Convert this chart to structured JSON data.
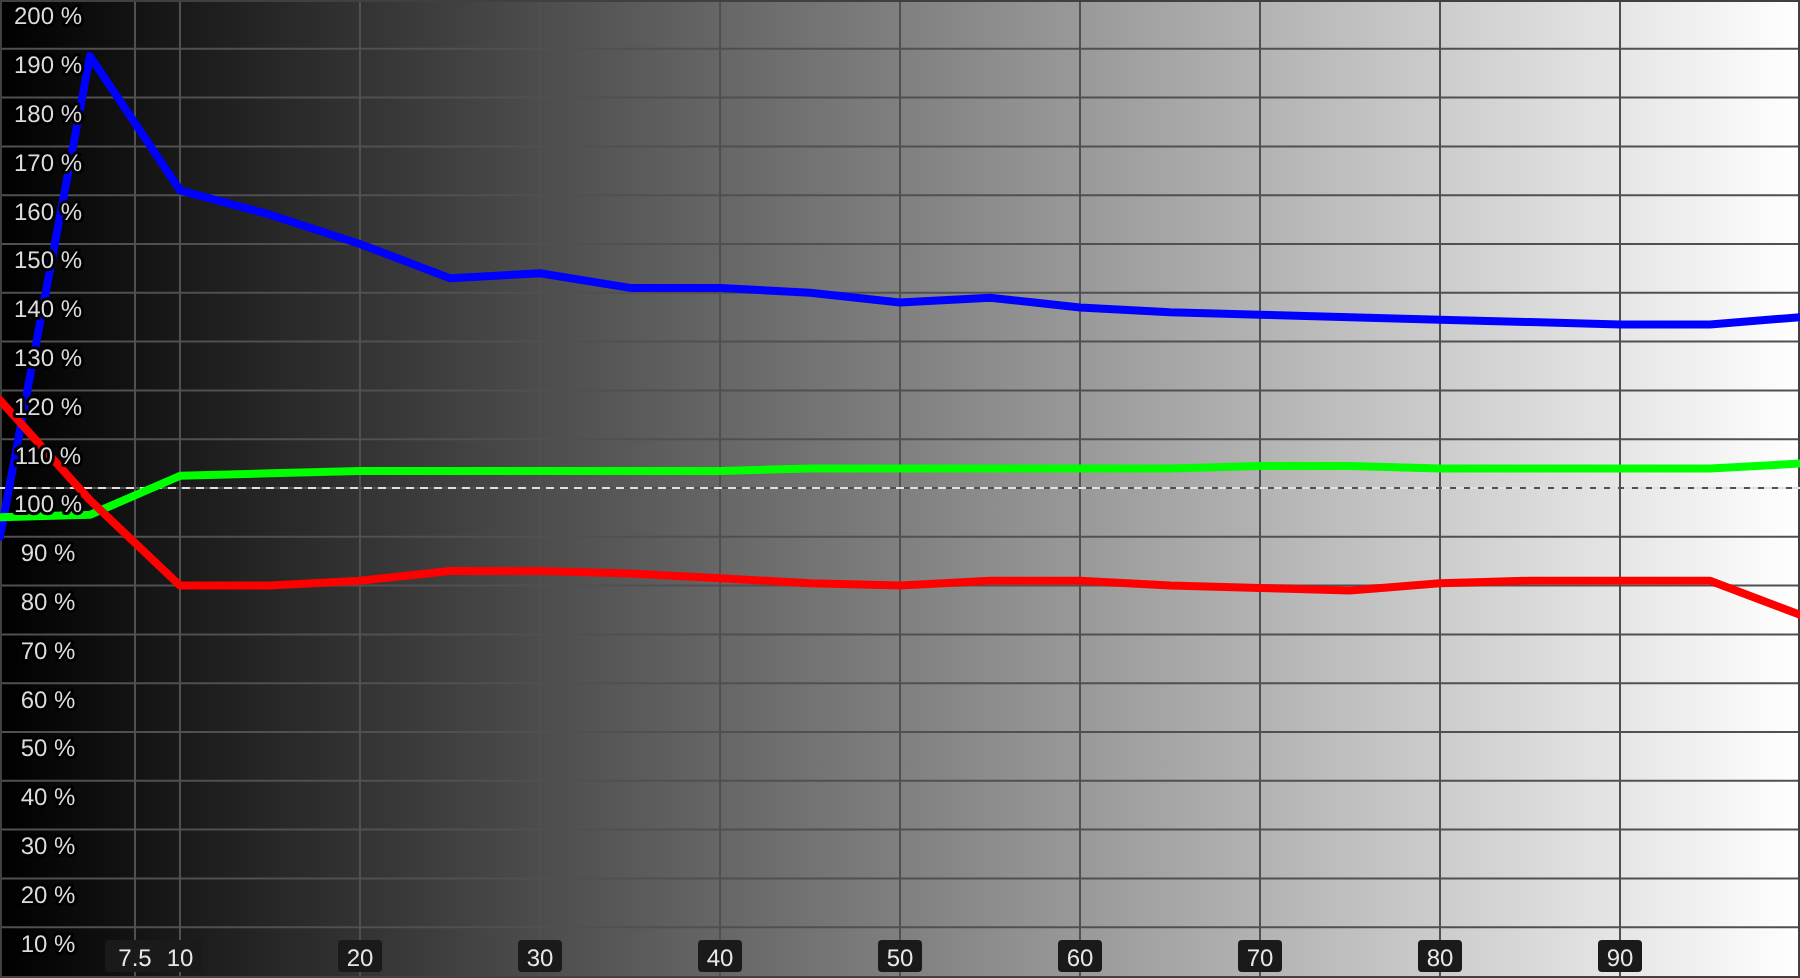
{
  "chart_data": {
    "type": "line",
    "x": [
      0,
      5,
      10,
      15,
      20,
      25,
      30,
      35,
      40,
      45,
      50,
      55,
      60,
      65,
      70,
      75,
      80,
      85,
      90,
      95,
      100
    ],
    "series": [
      {
        "color": "#0000ff",
        "values": [
          90,
          188.5,
          161,
          156,
          150,
          143,
          144,
          141,
          141,
          140,
          138,
          139,
          137,
          136,
          135.5,
          135,
          134.5,
          134,
          133.5,
          133.5,
          135
        ]
      },
      {
        "color": "#00ff00",
        "values": [
          94,
          94.5,
          102.5,
          103,
          103.5,
          103.5,
          103.5,
          103.5,
          103.5,
          104,
          104,
          104,
          104,
          104,
          104.5,
          104.5,
          104,
          104,
          104,
          104,
          105
        ]
      },
      {
        "color": "#ff0000",
        "values": [
          118,
          97.5,
          80,
          80,
          81,
          83,
          83,
          82.5,
          81.5,
          80.5,
          80,
          81,
          81,
          80,
          79.5,
          79,
          80.5,
          81,
          81,
          81,
          74
        ]
      }
    ],
    "xlim": [
      0,
      100
    ],
    "xticks": [
      7.5,
      10,
      20,
      30,
      40,
      50,
      60,
      70,
      80,
      90
    ],
    "ylim": [
      0,
      200
    ],
    "yticks": [
      {
        "value": 10,
        "label": "10 %"
      },
      {
        "value": 20,
        "label": "20 %"
      },
      {
        "value": 30,
        "label": "30 %"
      },
      {
        "value": 40,
        "label": "40 %"
      },
      {
        "value": 50,
        "label": "50 %"
      },
      {
        "value": 60,
        "label": "60 %"
      },
      {
        "value": 70,
        "label": "70 %"
      },
      {
        "value": 80,
        "label": "80 %"
      },
      {
        "value": 90,
        "label": "90 %"
      },
      {
        "value": 100,
        "label": "100 %"
      },
      {
        "value": 110,
        "label": "110 %"
      },
      {
        "value": 120,
        "label": "120 %"
      },
      {
        "value": 130,
        "label": "130 %"
      },
      {
        "value": 140,
        "label": "140 %"
      },
      {
        "value": 150,
        "label": "150 %"
      },
      {
        "value": 160,
        "label": "160 %"
      },
      {
        "value": 170,
        "label": "170 %"
      },
      {
        "value": 180,
        "label": "180 %"
      },
      {
        "value": 190,
        "label": "190 %"
      },
      {
        "value": 200,
        "label": "200 %"
      }
    ],
    "ref_lines": [
      {
        "axis": "y",
        "value": 100,
        "color": "#e0e0e0",
        "line_style": "dashed"
      }
    ],
    "grid": true,
    "line_style": "solid",
    "marker": "none"
  }
}
